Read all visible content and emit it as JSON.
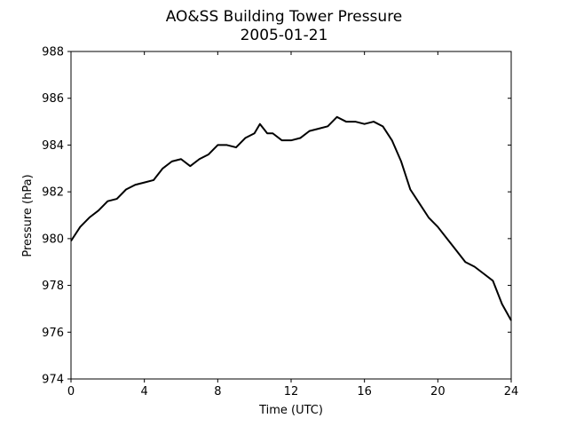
{
  "chart_data": {
    "type": "line",
    "title": "AO&SS Building Tower Pressure",
    "subtitle": "2005-01-21",
    "xlabel": "Time (UTC)",
    "ylabel": "Pressure (hPa)",
    "x": [
      0,
      0.5,
      1,
      1.5,
      2,
      2.5,
      3,
      3.5,
      4,
      4.5,
      5,
      5.5,
      6,
      6.5,
      7,
      7.5,
      8,
      8.5,
      9,
      9.5,
      10,
      10.3,
      10.7,
      11,
      11.5,
      12,
      12.5,
      13,
      13.5,
      14,
      14.5,
      15,
      15.5,
      16,
      16.5,
      17,
      17.5,
      18,
      18.5,
      19,
      19.5,
      20,
      20.5,
      21,
      21.5,
      22,
      22.5,
      23,
      23.5,
      24
    ],
    "series": [
      {
        "name": "Pressure",
        "color": "#000000",
        "values": [
          979.9,
          980.5,
          980.9,
          981.2,
          981.6,
          981.7,
          982.1,
          982.3,
          982.4,
          982.5,
          983.0,
          983.3,
          983.4,
          983.1,
          983.4,
          983.6,
          984.0,
          984.0,
          983.9,
          984.3,
          984.5,
          984.9,
          984.5,
          984.5,
          984.2,
          984.2,
          984.3,
          984.6,
          984.7,
          984.8,
          985.2,
          985.0,
          985.0,
          984.9,
          985.0,
          984.8,
          984.2,
          983.3,
          982.1,
          981.5,
          980.9,
          980.5,
          980.0,
          979.5,
          979.0,
          978.8,
          978.5,
          978.2,
          977.2,
          976.5
        ]
      }
    ],
    "xlim": [
      0,
      24
    ],
    "xticks": [
      0,
      4,
      8,
      12,
      16,
      20,
      24
    ],
    "ylim": [
      974,
      988
    ],
    "yticks": [
      974,
      976,
      978,
      980,
      982,
      984,
      986,
      988
    ],
    "grid": false
  }
}
